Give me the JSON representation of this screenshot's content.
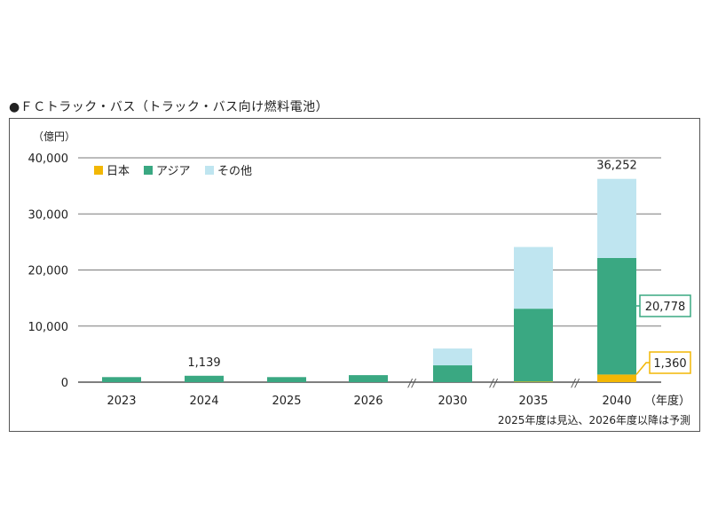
{
  "chart_data": {
    "type": "bar",
    "stacked": true,
    "title": "●ＦＣトラック・バス（トラック・バス向け燃料電池）",
    "ylabel": "（億円）",
    "xlabel": "（年度）",
    "note": "2025年度は見込、2026年度以降は予測",
    "ylim": [
      0,
      40000
    ],
    "yticks": [
      0,
      10000,
      20000,
      30000,
      40000
    ],
    "ytick_labels": [
      "0",
      "10,000",
      "20,000",
      "30,000",
      "40,000"
    ],
    "categories": [
      "2023",
      "2024",
      "2025",
      "2026",
      "2030",
      "2035",
      "2040"
    ],
    "axis_breaks": [
      "//",
      "//",
      "//"
    ],
    "grid": true,
    "legend_position": "top-left",
    "series": [
      {
        "name": "日本",
        "color": "#f2b705",
        "values": [
          0,
          0,
          0,
          0,
          0,
          100,
          1360
        ]
      },
      {
        "name": "アジア",
        "color": "#3aa882",
        "values": [
          900,
          1139,
          900,
          1250,
          3000,
          13000,
          20778
        ]
      },
      {
        "name": "その他",
        "color": "#bfe5f0",
        "values": [
          0,
          0,
          0,
          0,
          3000,
          11000,
          14114
        ]
      }
    ],
    "data_labels": [
      {
        "category": "2024",
        "text": "1,139",
        "boxed": false,
        "color": ""
      },
      {
        "category": "2040",
        "text": "36,252",
        "boxed": false,
        "color": ""
      },
      {
        "category": "2040",
        "text": "20,778",
        "boxed": true,
        "color": "#3aa882"
      },
      {
        "category": "2040",
        "text": "1,360",
        "boxed": true,
        "color": "#f2b705"
      }
    ]
  }
}
